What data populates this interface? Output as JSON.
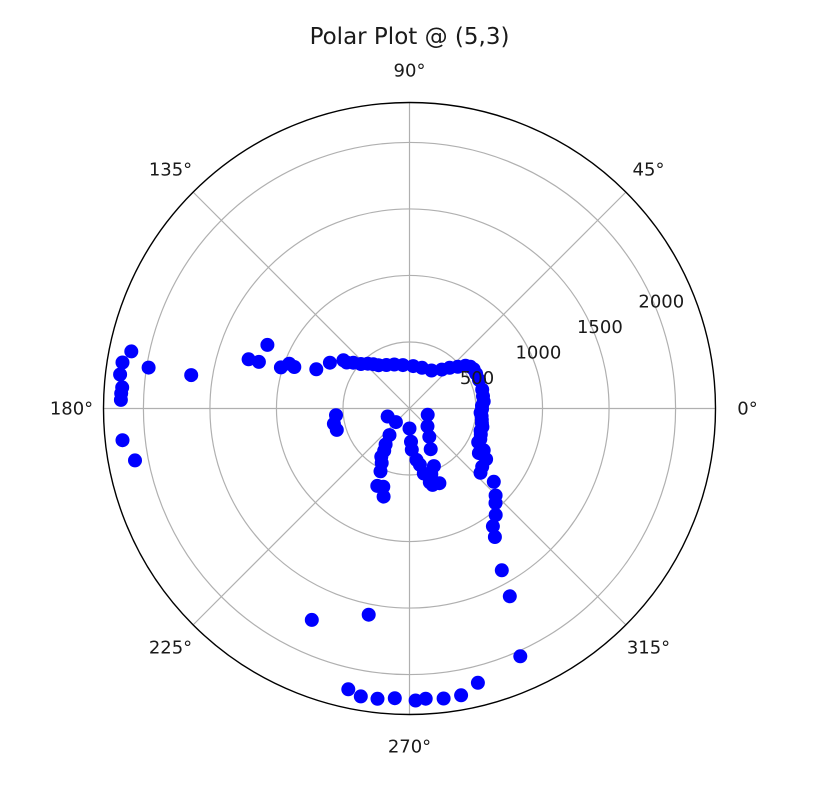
{
  "chart_data": {
    "type": "scatter",
    "projection": "polar",
    "title": "Polar Plot @ (5,3)",
    "theta_unit": "degrees",
    "theta_ticks": [
      "0°",
      "45°",
      "90°",
      "135°",
      "180°",
      "225°",
      "270°",
      "315°"
    ],
    "r_ticks": [
      500,
      1000,
      1500,
      2000
    ],
    "r_tick_labels": [
      "500",
      "1000",
      "1500",
      "2000"
    ],
    "r_tick_angle_deg": 22.5,
    "rlim": [
      0,
      2300
    ],
    "grid": true,
    "marker_color": "#0000ff",
    "series": [
      {
        "points": [
          {
            "theta": 175.8,
            "r": 2165
          },
          {
            "theta": 173.3,
            "r": 2190
          },
          {
            "theta": 170.9,
            "r": 2185
          },
          {
            "theta": 168.4,
            "r": 2135
          },
          {
            "theta": 177.0,
            "r": 2170
          },
          {
            "theta": 178.3,
            "r": 2170
          },
          {
            "theta": 186.3,
            "r": 2170
          },
          {
            "theta": 190.7,
            "r": 2100
          },
          {
            "theta": 171.1,
            "r": 1985
          },
          {
            "theta": 171.3,
            "r": 1660
          },
          {
            "theta": 162.8,
            "r": 1185
          },
          {
            "theta": 155.9,
            "r": 1170
          },
          {
            "theta": 163.0,
            "r": 1265
          },
          {
            "theta": 160.2,
            "r": 920
          },
          {
            "theta": 162.3,
            "r": 1015
          },
          {
            "theta": 159.6,
            "r": 965
          },
          {
            "theta": 157.2,
            "r": 760
          },
          {
            "theta": 150.1,
            "r": 690
          },
          {
            "theta": 143.9,
            "r": 615
          },
          {
            "theta": 143.8,
            "r": 585
          },
          {
            "theta": 140.8,
            "r": 545
          },
          {
            "theta": 137.5,
            "r": 495
          },
          {
            "theta": 133.0,
            "r": 460
          },
          {
            "theta": 129.2,
            "r": 430
          },
          {
            "theta": 125.6,
            "r": 400
          },
          {
            "theta": 118.0,
            "r": 370
          },
          {
            "theta": 109.0,
            "r": 350
          },
          {
            "theta": 98.7,
            "r": 330
          },
          {
            "theta": 85.0,
            "r": 320
          },
          {
            "theta": 72.9,
            "r": 320
          },
          {
            "theta": 60.0,
            "r": 330
          },
          {
            "theta": 50.3,
            "r": 380
          },
          {
            "theta": 45.4,
            "r": 430
          },
          {
            "theta": 40.8,
            "r": 480
          },
          {
            "theta": 37.4,
            "r": 530
          },
          {
            "theta": 34.4,
            "r": 555
          },
          {
            "theta": 31.5,
            "r": 565
          },
          {
            "theta": 27.6,
            "r": 565
          },
          {
            "theta": 22.4,
            "r": 565
          },
          {
            "theta": 14.6,
            "r": 565
          },
          {
            "theta": 9.5,
            "r": 560
          },
          {
            "theta": 5.5,
            "r": 560
          },
          {
            "theta": 2.1,
            "r": 545
          },
          {
            "theta": -0.5,
            "r": 545
          },
          {
            "theta": -3.4,
            "r": 535
          },
          {
            "theta": -6.1,
            "r": 545
          },
          {
            "theta": -8.8,
            "r": 550
          },
          {
            "theta": -11.5,
            "r": 555
          },
          {
            "theta": -14.2,
            "r": 565
          },
          {
            "theta": -17.3,
            "r": 560
          },
          {
            "theta": -20.0,
            "r": 570
          },
          {
            "theta": -23.4,
            "r": 580
          },
          {
            "theta": -26.1,
            "r": 575
          },
          {
            "theta": -29.4,
            "r": 640
          },
          {
            "theta": -33.5,
            "r": 690
          },
          {
            "theta": -32.7,
            "r": 620
          },
          {
            "theta": -38.7,
            "r": 700
          },
          {
            "theta": -42.2,
            "r": 720
          },
          {
            "theta": -41.0,
            "r": 840
          },
          {
            "theta": -45.3,
            "r": 920
          },
          {
            "theta": -47.7,
            "r": 960
          },
          {
            "theta": -51.0,
            "r": 1030
          },
          {
            "theta": -54.7,
            "r": 1085
          },
          {
            "theta": -56.4,
            "r": 1160
          },
          {
            "theta": -60.3,
            "r": 1400
          },
          {
            "theta": -61.9,
            "r": 1600
          },
          {
            "theta": -65.9,
            "r": 2040
          },
          {
            "theta": -76.0,
            "r": 2125
          },
          {
            "theta": -79.8,
            "r": 2190
          },
          {
            "theta": -83.3,
            "r": 2195
          },
          {
            "theta": -86.8,
            "r": 2185
          },
          {
            "theta": -88.8,
            "r": 2195
          },
          {
            "theta": -92.9,
            "r": 2180
          },
          {
            "theta": -96.3,
            "r": 2195
          },
          {
            "theta": -99.6,
            "r": 2195
          },
          {
            "theta": -102.3,
            "r": 2160
          },
          {
            "theta": -101.2,
            "r": 1580
          },
          {
            "theta": -114.8,
            "r": 1750
          },
          {
            "theta": -106.4,
            "r": 690
          },
          {
            "theta": -108.5,
            "r": 620
          },
          {
            "theta": -112.6,
            "r": 630
          },
          {
            "theta": -114.8,
            "r": 520
          },
          {
            "theta": -117.0,
            "r": 460
          },
          {
            "theta": -120.3,
            "r": 420
          },
          {
            "theta": -120.9,
            "r": 370
          },
          {
            "theta": -123.6,
            "r": 325
          },
          {
            "theta": -126.9,
            "r": 250
          },
          {
            "theta": -135.0,
            "r": 145
          },
          {
            "theta": -160.0,
            "r": 175
          },
          {
            "theta": -90.0,
            "r": 150
          },
          {
            "theta": -87.4,
            "r": 250
          },
          {
            "theta": -86.8,
            "r": 310
          },
          {
            "theta": -82.3,
            "r": 390
          },
          {
            "theta": -79.5,
            "r": 430
          },
          {
            "theta": -77.6,
            "r": 500
          },
          {
            "theta": -74.6,
            "r": 575
          },
          {
            "theta": -73.2,
            "r": 600
          },
          {
            "theta": -68.2,
            "r": 605
          },
          {
            "theta": -71.6,
            "r": 520
          },
          {
            "theta": -67.0,
            "r": 470
          },
          {
            "theta": -62.5,
            "r": 345
          },
          {
            "theta": -55.0,
            "r": 260
          },
          {
            "theta": -44.7,
            "r": 190
          },
          {
            "theta": -19.0,
            "r": 145
          },
          {
            "theta": -163.6,
            "r": 570
          },
          {
            "theta": -174.8,
            "r": 555
          },
          {
            "theta": -168.6,
            "r": 580
          }
        ]
      }
    ]
  }
}
